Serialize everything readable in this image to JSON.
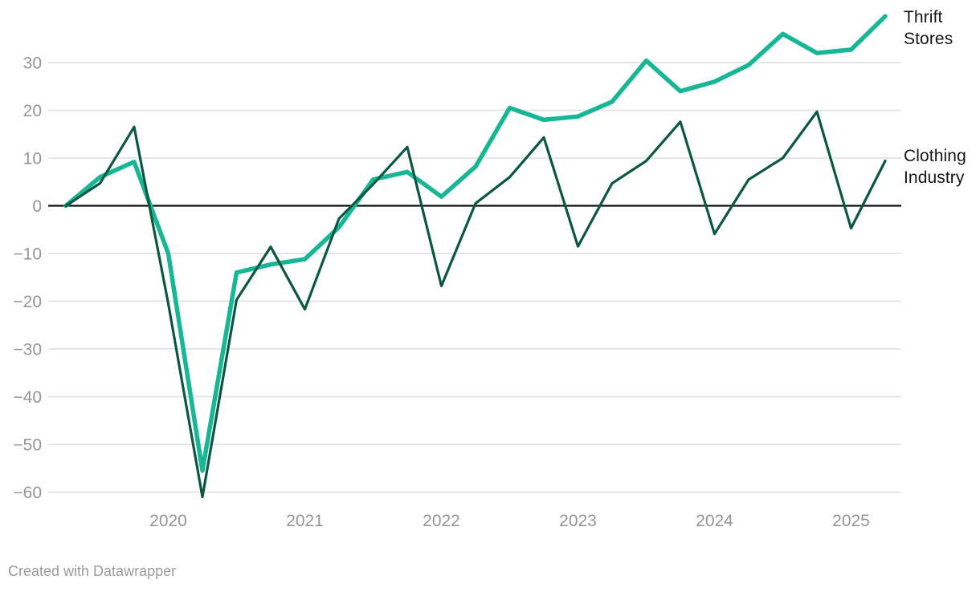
{
  "chart_data": {
    "type": "line",
    "title": "",
    "xlabel": "",
    "ylabel": "",
    "x": [
      "Q2 2019",
      "Q3 2019",
      "Q4 2019",
      "Q1 2020",
      "Q2 2020",
      "Q3 2020",
      "Q4 2020",
      "Q1 2021",
      "Q2 2021",
      "Q3 2021",
      "Q4 2021",
      "Q1 2022",
      "Q2 2022",
      "Q3 2022",
      "Q4 2022",
      "Q1 2023",
      "Q2 2023",
      "Q3 2023",
      "Q4 2023",
      "Q1 2024",
      "Q2 2024",
      "Q3 2024",
      "Q4 2024",
      "Q1 2025",
      "Q2 2025"
    ],
    "x_tick_labels": [
      "2020",
      "2021",
      "2022",
      "2023",
      "2024",
      "2025"
    ],
    "x_tick_indices": [
      3,
      7,
      11,
      15,
      19,
      23
    ],
    "ytick_values": [
      30,
      20,
      10,
      0,
      -10,
      -20,
      -30,
      -40,
      -50,
      -60
    ],
    "ytick_labels": [
      "30",
      "20",
      "10",
      "0",
      "−10",
      "−20",
      "−30",
      "−40",
      "−50",
      "−60"
    ],
    "ylim": [
      -65,
      41
    ],
    "grid": "horizontal",
    "zero_baseline": true,
    "legend_position": "direct-labels-right",
    "series": [
      {
        "name": "Thrift Stores",
        "color": "#17b795",
        "stroke_width": 5.5,
        "values": [
          0,
          6,
          9.2,
          -10,
          -55.5,
          -14,
          -12.3,
          -11.2,
          -4.5,
          5.5,
          7.1,
          1.9,
          8.2,
          20.5,
          18,
          18.7,
          21.8,
          30.4,
          24,
          26,
          29.5,
          36,
          32,
          32.7,
          39.7
        ]
      },
      {
        "name": "Clothing Industry",
        "color": "#0b5742",
        "stroke_width": 3.2,
        "values": [
          0,
          4.7,
          16.5,
          -20.5,
          -61,
          -19.7,
          -8.6,
          -21.7,
          -2.7,
          4.5,
          12.3,
          -16.8,
          0.5,
          6,
          14.3,
          -8.5,
          4.7,
          9.4,
          17.6,
          -5.9,
          5.5,
          10,
          19.7,
          -4.7,
          9.4
        ]
      }
    ]
  },
  "footer": {
    "text": "Created with Datawrapper"
  },
  "colors": {
    "background": "#ffffff",
    "grid": "#e2e2e2",
    "zero_line": "#111111",
    "tick_label": "#959595",
    "legend_text": "#161616",
    "footer_text": "#9b9b9b"
  }
}
